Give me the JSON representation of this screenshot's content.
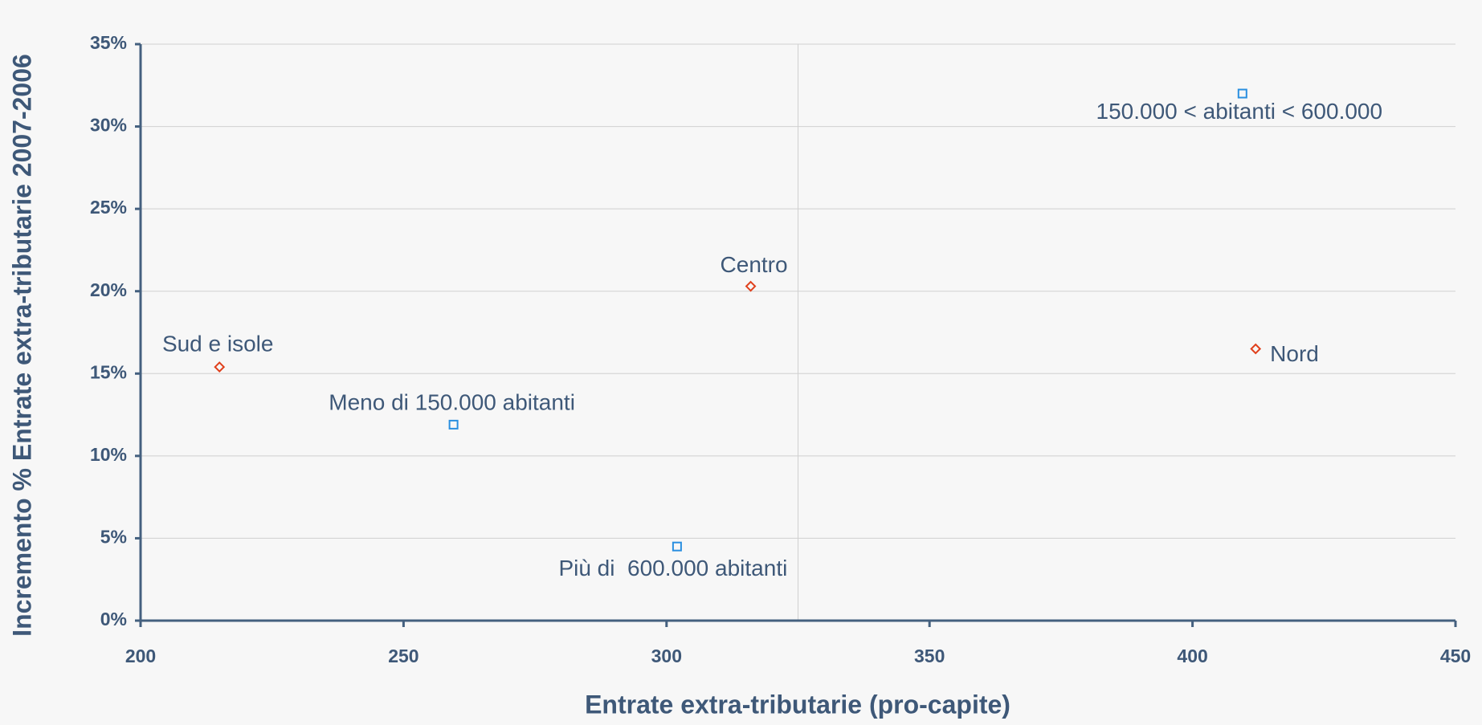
{
  "chart_data": {
    "type": "scatter",
    "xlabel": "Entrate extra-tributarie (pro-capite)",
    "ylabel": "Incremento % Entrate extra-tributarie 2007-2006",
    "xlim": [
      200,
      450
    ],
    "xticks": [
      200,
      250,
      300,
      350,
      400,
      450
    ],
    "ylim": [
      0,
      35
    ],
    "yticks": [
      {
        "value": 0,
        "label": "0%"
      },
      {
        "value": 5,
        "label": "5%"
      },
      {
        "value": 10,
        "label": "10%"
      },
      {
        "value": 15,
        "label": "15%"
      },
      {
        "value": 20,
        "label": "20%"
      },
      {
        "value": 25,
        "label": "25%"
      },
      {
        "value": 30,
        "label": "30%"
      },
      {
        "value": 35,
        "label": "35%"
      }
    ],
    "grid": true,
    "x_reference_line": 325,
    "series": [
      {
        "color": "#e0401c",
        "marker": "diamond",
        "x": [
          215,
          316,
          412
        ],
        "values": [
          15.4,
          20.3,
          16.5
        ],
        "labels": [
          "Sud e isole",
          "Centro",
          "Nord"
        ]
      },
      {
        "color": "#2a8fe0",
        "marker": "square",
        "x": [
          259.5,
          302,
          409.5
        ],
        "values": [
          11.9,
          4.5,
          32
        ],
        "labels": [
          "Meno di 150.000 abitanti",
          "Più di  600.000 abitanti",
          "150.000 < abitanti < 600.000"
        ]
      }
    ]
  }
}
